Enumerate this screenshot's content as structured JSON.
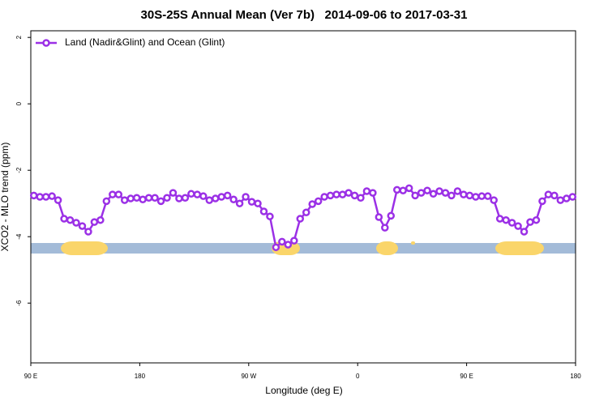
{
  "chart_data": {
    "type": "line",
    "title": "30S-25S Annual Mean (Ver 7b)   2014-09-06 to 2017-03-31",
    "xlabel": "Longitude (deg E)",
    "ylabel": "XCO2 - MLO trend (ppm)",
    "xlim": [
      90,
      540
    ],
    "ylim": [
      -7.8,
      2.2
    ],
    "xticks": [
      {
        "value": 90,
        "label": "90 E"
      },
      180,
      {
        "value": 270,
        "label": "90 W"
      },
      {
        "value": 360,
        "label": "0"
      },
      {
        "value": 450,
        "label": "90 E"
      },
      {
        "value": 540,
        "label": "180"
      }
    ],
    "yticks": [
      2,
      0,
      -2,
      -4,
      -6
    ],
    "legend": "upper left",
    "x": [
      92.5,
      97.5,
      102.5,
      107.5,
      112.5,
      117.5,
      122.5,
      127.5,
      132.5,
      137.5,
      142.5,
      147.5,
      152.5,
      157.5,
      162.5,
      167.5,
      172.5,
      177.5,
      182.5,
      187.5,
      192.5,
      197.5,
      202.5,
      207.5,
      212.5,
      217.5,
      222.5,
      227.5,
      232.5,
      237.5,
      242.5,
      247.5,
      252.5,
      257.5,
      262.5,
      267.5,
      272.5,
      277.5,
      282.5,
      287.5,
      292.5,
      297.5,
      302.5,
      307.5,
      312.5,
      317.5,
      322.5,
      327.5,
      332.5,
      337.5,
      342.5,
      347.5,
      352.5,
      357.5,
      362.5,
      367.5,
      372.5,
      377.5,
      382.5,
      387.5,
      392.5,
      397.5,
      402.5,
      407.5,
      412.5,
      417.5,
      422.5,
      427.5,
      432.5,
      437.5,
      442.5,
      447.5,
      452.5,
      457.5,
      462.5,
      467.5,
      472.5,
      477.5,
      482.5,
      487.5,
      492.5,
      497.5,
      502.5,
      507.5,
      512.5,
      517.5,
      522.5,
      527.5,
      532.5,
      537.5
    ],
    "series": [
      {
        "name": "Land (Nadir&Glint) and Ocean (Glint)",
        "color": "#9b30e6",
        "values": [
          -2.76,
          -2.8,
          -2.8,
          -2.78,
          -2.9,
          -3.46,
          -3.5,
          -3.58,
          -3.68,
          -3.85,
          -3.56,
          -3.5,
          -2.93,
          -2.73,
          -2.73,
          -2.9,
          -2.85,
          -2.83,
          -2.88,
          -2.83,
          -2.83,
          -2.93,
          -2.83,
          -2.68,
          -2.85,
          -2.83,
          -2.71,
          -2.73,
          -2.78,
          -2.9,
          -2.85,
          -2.8,
          -2.76,
          -2.88,
          -3.0,
          -2.8,
          -2.95,
          -3.0,
          -3.24,
          -3.39,
          -4.32,
          -4.15,
          -4.24,
          -4.12,
          -3.46,
          -3.27,
          -3.02,
          -2.93,
          -2.8,
          -2.76,
          -2.73,
          -2.73,
          -2.68,
          -2.76,
          -2.83,
          -2.63,
          -2.68,
          -3.41,
          -3.73,
          -3.37,
          -2.59,
          -2.61,
          -2.54,
          -2.76,
          -2.68,
          -2.61,
          -2.71,
          -2.63,
          -2.68,
          -2.76,
          -2.63,
          -2.73,
          -2.76,
          -2.8,
          -2.78,
          -2.78,
          -2.9,
          -3.46,
          -3.5,
          -3.58,
          -3.68,
          -3.85,
          -3.56,
          -3.5,
          -2.93,
          -2.73,
          -2.76,
          -2.9,
          -2.85,
          -2.8
        ]
      }
    ]
  }
}
